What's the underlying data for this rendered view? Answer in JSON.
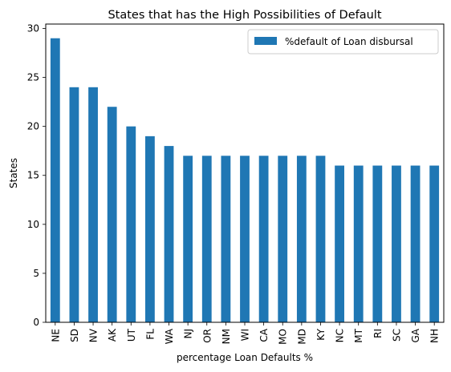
{
  "chart_data": {
    "type": "bar",
    "title": "States that has the High Possibilities of Default",
    "xlabel": "percentage Loan Defaults %",
    "ylabel": "States",
    "categories": [
      "NE",
      "SD",
      "NV",
      "AK",
      "UT",
      "FL",
      "WA",
      "NJ",
      "OR",
      "NM",
      "WI",
      "CA",
      "MO",
      "MD",
      "KY",
      "NC",
      "MT",
      "RI",
      "SC",
      "GA",
      "NH"
    ],
    "series": [
      {
        "name": "%default of Loan disbursal",
        "color": "#1f77b4",
        "values": [
          29,
          24,
          24,
          22,
          20,
          19,
          18,
          17,
          17,
          17,
          17,
          17,
          17,
          17,
          17,
          16,
          16,
          16,
          16,
          16,
          16
        ]
      }
    ],
    "ylim": [
      0,
      30.45
    ],
    "yticks": [
      0,
      5,
      10,
      15,
      20,
      25,
      30
    ],
    "grid": false,
    "legend_position": "top-right"
  }
}
